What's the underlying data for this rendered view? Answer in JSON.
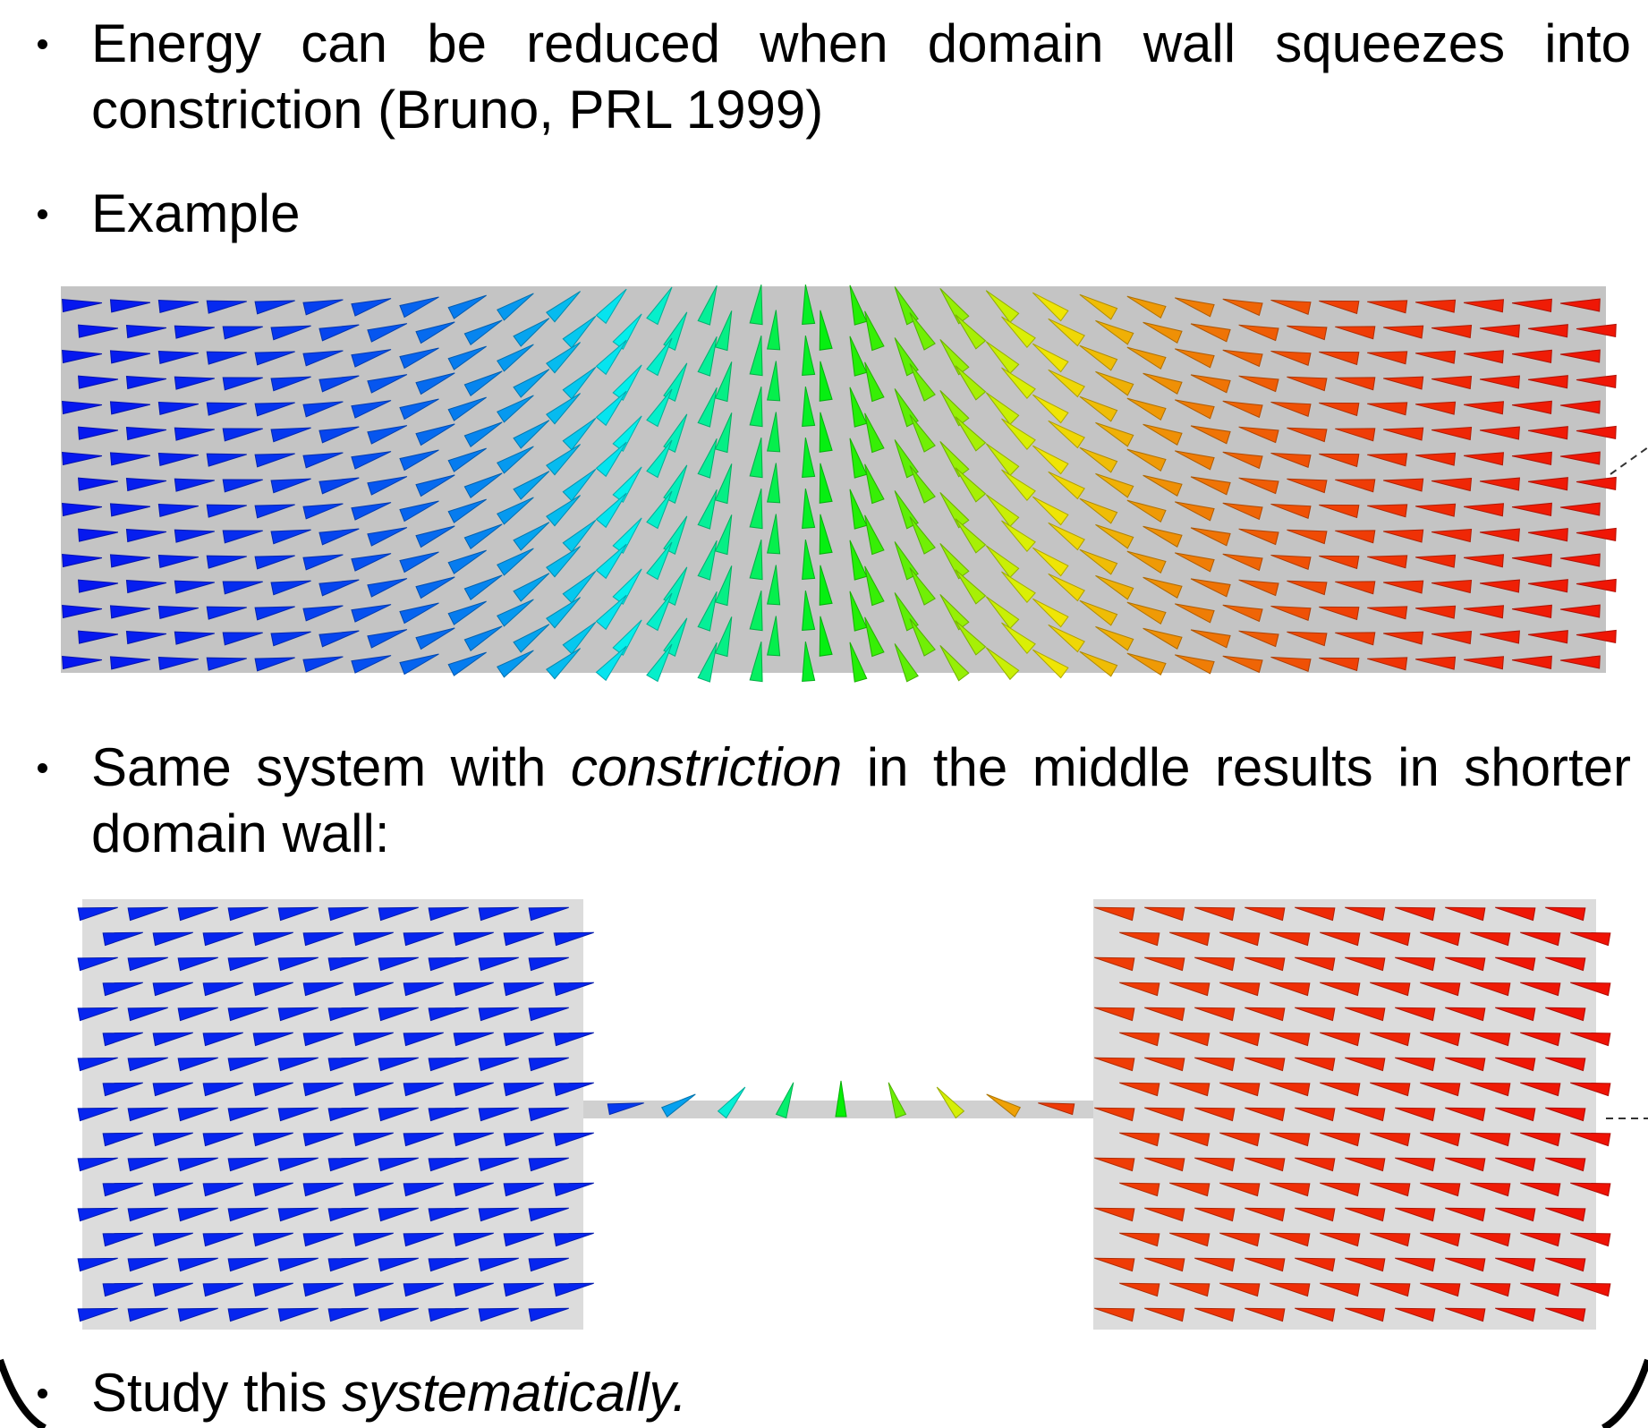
{
  "bullets": [
    {
      "text": "Energy can be reduced when domain wall squeezes into constriction (Bruno, PRL 1999)"
    },
    {
      "text": "Example"
    },
    {
      "parts": [
        "Same system with ",
        "constriction",
        "  in the middle results in shorter domain wall:"
      ]
    },
    {
      "parts": [
        "Study this ",
        "systematically."
      ]
    }
  ]
}
